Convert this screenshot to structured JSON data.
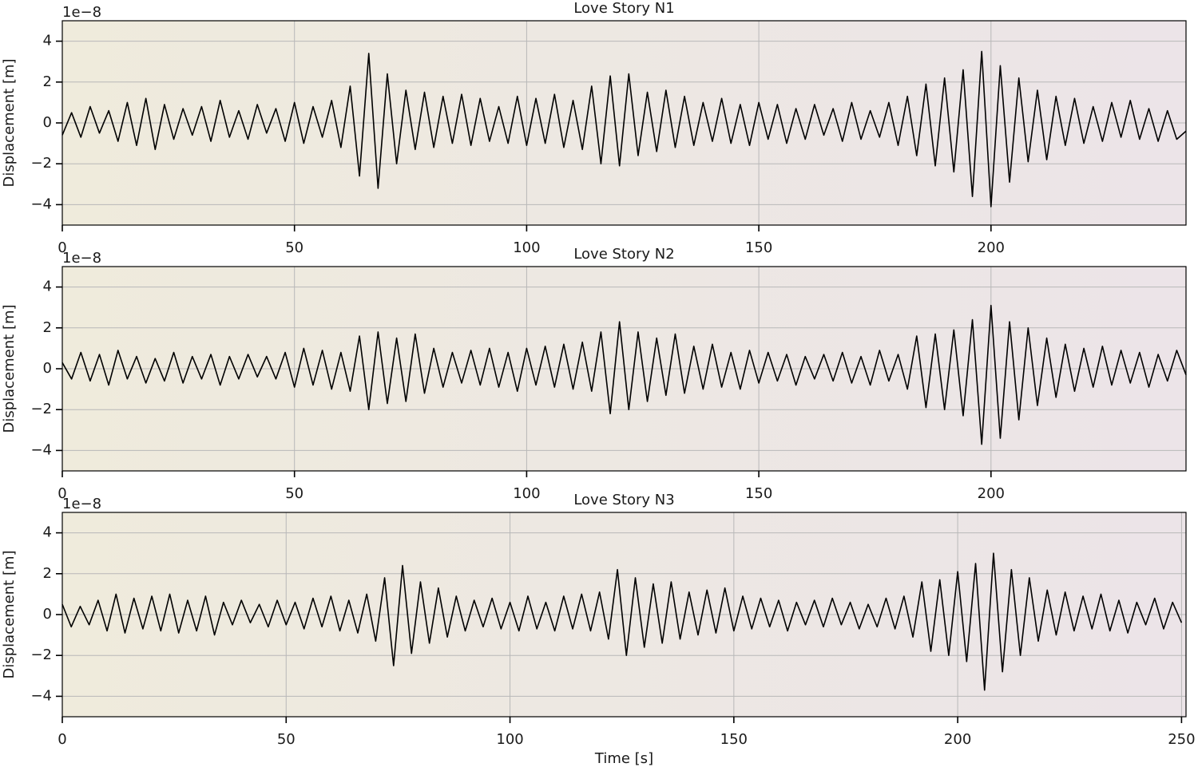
{
  "chart_data": [
    {
      "type": "line",
      "title": "Love Story N1",
      "ylabel": "Displacement [m]",
      "y_offset_label": "1e−8",
      "xlim": [
        0,
        242
      ],
      "ylim": [
        -5,
        5
      ],
      "xticks": [
        0,
        50,
        100,
        150,
        200
      ],
      "yticks": [
        {
          "value": -4,
          "label": "−4"
        },
        {
          "value": -2,
          "label": "−2"
        },
        0,
        2,
        4
      ],
      "grid": true,
      "x": [
        0,
        2,
        4,
        6,
        8,
        10,
        12,
        14,
        16,
        18,
        20,
        22,
        24,
        26,
        28,
        30,
        32,
        34,
        36,
        38,
        40,
        42,
        44,
        46,
        48,
        50,
        52,
        54,
        56,
        58,
        60,
        62,
        64,
        66,
        68,
        70,
        72,
        74,
        76,
        78,
        80,
        82,
        84,
        86,
        88,
        90,
        92,
        94,
        96,
        98,
        100,
        102,
        104,
        106,
        108,
        110,
        112,
        114,
        116,
        118,
        120,
        122,
        124,
        126,
        128,
        130,
        132,
        134,
        136,
        138,
        140,
        142,
        144,
        146,
        148,
        150,
        152,
        154,
        156,
        158,
        160,
        162,
        164,
        166,
        168,
        170,
        172,
        174,
        176,
        178,
        180,
        182,
        184,
        186,
        188,
        190,
        192,
        194,
        196,
        198,
        200,
        202,
        204,
        206,
        208,
        210,
        212,
        214,
        216,
        218,
        220,
        222,
        224,
        226,
        228,
        230,
        232,
        234,
        236,
        238,
        240,
        242
      ],
      "series": [
        {
          "color": "#000000",
          "values": [
            -0.6,
            0.5,
            -0.7,
            0.8,
            -0.5,
            0.6,
            -0.9,
            1.0,
            -1.1,
            1.2,
            -1.3,
            0.9,
            -0.8,
            0.7,
            -0.6,
            0.8,
            -0.9,
            1.1,
            -0.7,
            0.6,
            -0.8,
            0.9,
            -0.5,
            0.7,
            -0.9,
            1.0,
            -1.0,
            0.8,
            -0.7,
            1.1,
            -1.2,
            1.8,
            -2.6,
            3.4,
            -3.2,
            2.4,
            -2.0,
            1.6,
            -1.3,
            1.5,
            -1.2,
            1.3,
            -1.0,
            1.4,
            -1.1,
            1.2,
            -0.9,
            0.8,
            -1.0,
            1.3,
            -1.1,
            1.2,
            -1.0,
            1.4,
            -1.2,
            1.1,
            -1.3,
            1.8,
            -2.0,
            2.3,
            -2.1,
            2.4,
            -1.6,
            1.5,
            -1.4,
            1.6,
            -1.2,
            1.3,
            -1.1,
            1.0,
            -0.9,
            1.2,
            -1.0,
            0.9,
            -1.1,
            1.0,
            -0.8,
            0.9,
            -1.0,
            0.7,
            -0.8,
            0.9,
            -0.6,
            0.7,
            -0.9,
            1.0,
            -0.8,
            0.6,
            -0.7,
            1.0,
            -1.1,
            1.3,
            -1.6,
            1.9,
            -2.1,
            2.2,
            -2.4,
            2.6,
            -3.6,
            3.5,
            -4.1,
            2.8,
            -2.9,
            2.2,
            -1.9,
            1.6,
            -1.8,
            1.3,
            -1.1,
            1.2,
            -1.0,
            0.8,
            -0.9,
            1.0,
            -0.7,
            1.1,
            -0.8,
            0.7,
            -0.9,
            0.6,
            -0.8,
            -0.4
          ]
        }
      ]
    },
    {
      "type": "line",
      "title": "Love Story N2",
      "ylabel": "Displacement [m]",
      "y_offset_label": "1e−8",
      "xlim": [
        0,
        242
      ],
      "ylim": [
        -5,
        5
      ],
      "xticks": [
        0,
        50,
        100,
        150,
        200
      ],
      "yticks": [
        {
          "value": -4,
          "label": "−4"
        },
        {
          "value": -2,
          "label": "−2"
        },
        0,
        2,
        4
      ],
      "grid": true,
      "x": [
        0,
        2,
        4,
        6,
        8,
        10,
        12,
        14,
        16,
        18,
        20,
        22,
        24,
        26,
        28,
        30,
        32,
        34,
        36,
        38,
        40,
        42,
        44,
        46,
        48,
        50,
        52,
        54,
        56,
        58,
        60,
        62,
        64,
        66,
        68,
        70,
        72,
        74,
        76,
        78,
        80,
        82,
        84,
        86,
        88,
        90,
        92,
        94,
        96,
        98,
        100,
        102,
        104,
        106,
        108,
        110,
        112,
        114,
        116,
        118,
        120,
        122,
        124,
        126,
        128,
        130,
        132,
        134,
        136,
        138,
        140,
        142,
        144,
        146,
        148,
        150,
        152,
        154,
        156,
        158,
        160,
        162,
        164,
        166,
        168,
        170,
        172,
        174,
        176,
        178,
        180,
        182,
        184,
        186,
        188,
        190,
        192,
        194,
        196,
        198,
        200,
        202,
        204,
        206,
        208,
        210,
        212,
        214,
        216,
        218,
        220,
        222,
        224,
        226,
        228,
        230,
        232,
        234,
        236,
        238,
        240,
        242
      ],
      "series": [
        {
          "color": "#000000",
          "values": [
            0.3,
            -0.5,
            0.8,
            -0.6,
            0.7,
            -0.8,
            0.9,
            -0.5,
            0.6,
            -0.7,
            0.5,
            -0.6,
            0.8,
            -0.7,
            0.6,
            -0.5,
            0.7,
            -0.8,
            0.6,
            -0.5,
            0.7,
            -0.4,
            0.6,
            -0.5,
            0.8,
            -0.9,
            1.0,
            -0.8,
            0.9,
            -1.0,
            0.8,
            -1.1,
            1.6,
            -2.0,
            1.8,
            -1.7,
            1.5,
            -1.6,
            1.7,
            -1.2,
            1.0,
            -0.9,
            0.8,
            -0.7,
            0.9,
            -0.8,
            1.0,
            -0.9,
            0.8,
            -1.1,
            1.0,
            -0.8,
            1.1,
            -0.9,
            1.2,
            -1.0,
            1.3,
            -1.1,
            1.8,
            -2.2,
            2.3,
            -2.0,
            1.8,
            -1.6,
            1.5,
            -1.3,
            1.7,
            -1.2,
            1.1,
            -1.0,
            1.2,
            -0.9,
            0.8,
            -1.0,
            0.9,
            -0.7,
            0.8,
            -0.6,
            0.7,
            -0.8,
            0.6,
            -0.5,
            0.7,
            -0.6,
            0.8,
            -0.7,
            0.6,
            -0.8,
            0.9,
            -0.6,
            0.7,
            -1.0,
            1.6,
            -1.9,
            1.7,
            -2.0,
            1.9,
            -2.3,
            2.4,
            -3.7,
            3.1,
            -3.4,
            2.3,
            -2.5,
            2.0,
            -1.8,
            1.5,
            -1.4,
            1.2,
            -1.1,
            1.0,
            -0.9,
            1.1,
            -0.8,
            0.9,
            -0.7,
            0.8,
            -0.9,
            0.7,
            -0.6,
            0.9,
            -0.3
          ]
        }
      ]
    },
    {
      "type": "line",
      "title": "Love Story N3",
      "ylabel": "Displacement [m]",
      "xlabel": "Time [s]",
      "y_offset_label": "1e−8",
      "xlim": [
        0,
        251
      ],
      "ylim": [
        -5,
        5
      ],
      "xticks": [
        0,
        50,
        100,
        150,
        200,
        250
      ],
      "yticks": [
        {
          "value": -4,
          "label": "−4"
        },
        {
          "value": -2,
          "label": "−2"
        },
        0,
        2,
        4
      ],
      "grid": true,
      "x": [
        0,
        2,
        4,
        6,
        8,
        10,
        12,
        14,
        16,
        18,
        20,
        22,
        24,
        26,
        28,
        30,
        32,
        34,
        36,
        38,
        40,
        42,
        44,
        46,
        48,
        50,
        52,
        54,
        56,
        58,
        60,
        62,
        64,
        66,
        68,
        70,
        72,
        74,
        76,
        78,
        80,
        82,
        84,
        86,
        88,
        90,
        92,
        94,
        96,
        98,
        100,
        102,
        104,
        106,
        108,
        110,
        112,
        114,
        116,
        118,
        120,
        122,
        124,
        126,
        128,
        130,
        132,
        134,
        136,
        138,
        140,
        142,
        144,
        146,
        148,
        150,
        152,
        154,
        156,
        158,
        160,
        162,
        164,
        166,
        168,
        170,
        172,
        174,
        176,
        178,
        180,
        182,
        184,
        186,
        188,
        190,
        192,
        194,
        196,
        198,
        200,
        202,
        204,
        206,
        208,
        210,
        212,
        214,
        216,
        218,
        220,
        222,
        224,
        226,
        228,
        230,
        232,
        234,
        236,
        238,
        240,
        242,
        244,
        246,
        248,
        250
      ],
      "series": [
        {
          "color": "#000000",
          "values": [
            0.5,
            -0.6,
            0.4,
            -0.5,
            0.7,
            -0.8,
            1.0,
            -0.9,
            0.8,
            -0.7,
            0.9,
            -0.8,
            1.0,
            -0.9,
            0.7,
            -0.8,
            0.9,
            -1.0,
            0.6,
            -0.5,
            0.7,
            -0.4,
            0.5,
            -0.6,
            0.7,
            -0.5,
            0.6,
            -0.7,
            0.8,
            -0.6,
            0.9,
            -0.8,
            0.7,
            -0.9,
            1.0,
            -1.3,
            1.8,
            -2.5,
            2.4,
            -1.9,
            1.6,
            -1.4,
            1.3,
            -1.1,
            0.9,
            -0.8,
            0.7,
            -0.6,
            0.8,
            -0.7,
            0.6,
            -0.8,
            0.9,
            -0.7,
            0.6,
            -0.8,
            0.9,
            -0.7,
            1.0,
            -0.8,
            1.1,
            -1.2,
            2.2,
            -2.0,
            1.8,
            -1.6,
            1.5,
            -1.4,
            1.6,
            -1.2,
            1.1,
            -1.0,
            1.2,
            -0.9,
            1.3,
            -0.8,
            0.9,
            -0.7,
            0.8,
            -0.6,
            0.7,
            -0.8,
            0.6,
            -0.5,
            0.7,
            -0.6,
            0.8,
            -0.5,
            0.6,
            -0.7,
            0.5,
            -0.6,
            0.8,
            -0.7,
            0.9,
            -1.1,
            1.6,
            -1.8,
            1.7,
            -2.0,
            2.1,
            -2.3,
            2.5,
            -3.7,
            3.0,
            -2.8,
            2.2,
            -2.0,
            1.8,
            -1.3,
            1.2,
            -1.0,
            1.1,
            -0.8,
            0.9,
            -0.7,
            1.0,
            -0.8,
            0.7,
            -0.9,
            0.6,
            -0.5,
            0.8,
            -0.7,
            0.6,
            -0.4
          ]
        }
      ]
    }
  ]
}
